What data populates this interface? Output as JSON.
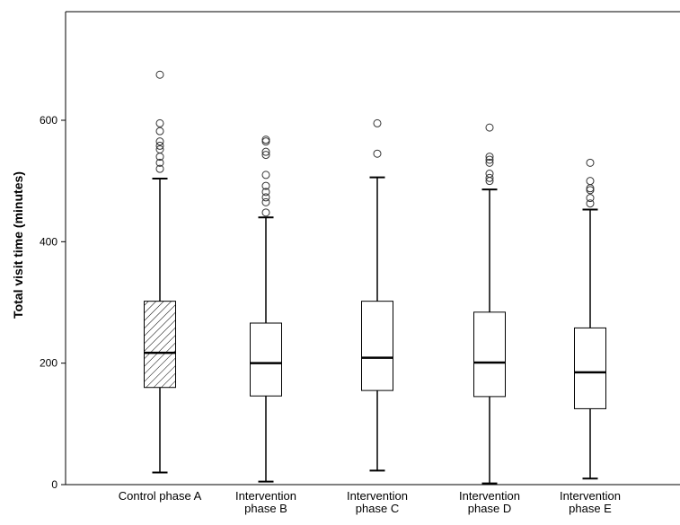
{
  "chart_data": {
    "type": "boxplot",
    "title": "",
    "xlabel": "",
    "ylabel": "Total visit time (minutes)",
    "ylim": [
      0,
      750
    ],
    "yticks": [
      0,
      200,
      400,
      600
    ],
    "grid": false,
    "categories": [
      [
        "Control phase A"
      ],
      [
        "Intervention",
        "phase B"
      ],
      [
        "Intervention",
        "phase C"
      ],
      [
        "Intervention",
        "phase D"
      ],
      [
        "Intervention",
        "phase E"
      ]
    ],
    "boxes": [
      {
        "min": 20,
        "q1": 160,
        "median": 217,
        "q3": 302,
        "max": 504,
        "fill": "hatched",
        "outliers": [
          520,
          530,
          540,
          552,
          558,
          565,
          582,
          595,
          675
        ]
      },
      {
        "min": 5,
        "q1": 146,
        "median": 200,
        "q3": 266,
        "max": 440,
        "fill": "none",
        "outliers": [
          448,
          465,
          473,
          482,
          492,
          510,
          543,
          548,
          565,
          568
        ]
      },
      {
        "min": 23,
        "q1": 155,
        "median": 209,
        "q3": 302,
        "max": 506,
        "fill": "none",
        "outliers": [
          545,
          595
        ]
      },
      {
        "min": 2,
        "q1": 145,
        "median": 201,
        "q3": 284,
        "max": 486,
        "fill": "none",
        "outliers": [
          500,
          505,
          512,
          530,
          535,
          540,
          588
        ]
      },
      {
        "min": 10,
        "q1": 125,
        "median": 185,
        "q3": 258,
        "max": 453,
        "fill": "none",
        "outliers": [
          463,
          472,
          485,
          488,
          500,
          530
        ]
      }
    ]
  }
}
